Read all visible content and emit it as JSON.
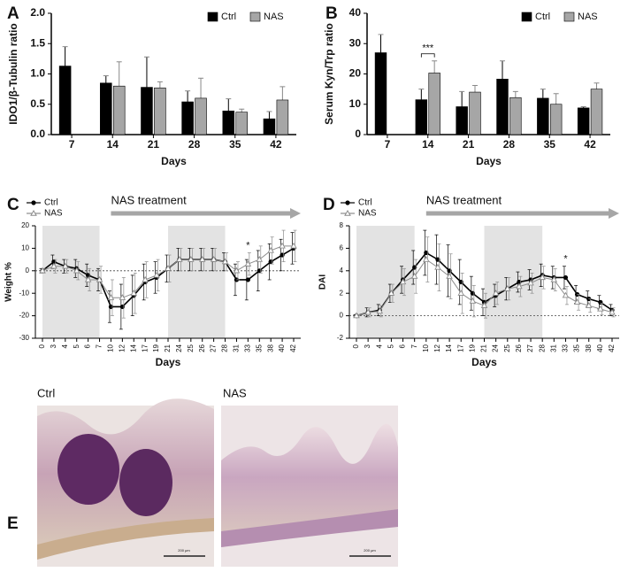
{
  "chart_data": [
    {
      "type": "bar",
      "panel_label": "A",
      "ylabel": "IDO1/β-Tubulin ratio",
      "xlabel": "Days",
      "categories": [
        "7",
        "14",
        "21",
        "28",
        "35",
        "42"
      ],
      "series": [
        {
          "name": "Ctrl",
          "color": "#000000",
          "values": [
            1.13,
            0.85,
            0.78,
            0.54,
            0.39,
            0.26
          ],
          "errors": [
            0.32,
            0.12,
            0.5,
            0.18,
            0.2,
            0.12
          ]
        },
        {
          "name": "NAS",
          "color": "#a6a6a6",
          "values": [
            null,
            0.8,
            0.77,
            0.6,
            0.37,
            0.57
          ],
          "errors": [
            null,
            0.4,
            0.1,
            0.33,
            0.05,
            0.22
          ]
        }
      ],
      "ylim": [
        0,
        2
      ],
      "yticks": [
        {
          "value": 0,
          "label": "0.0"
        },
        {
          "value": 0.5,
          "label": "0.5"
        },
        {
          "value": 1,
          "label": "1.0"
        },
        {
          "value": 1.5,
          "label": "1.5"
        },
        {
          "value": 2,
          "label": "2.0"
        }
      ],
      "legend": "top-right"
    },
    {
      "type": "bar",
      "panel_label": "B",
      "ylabel": "Serum Kyn/Trp ratio",
      "xlabel": "Days",
      "categories": [
        "7",
        "14",
        "21",
        "28",
        "35",
        "42"
      ],
      "series": [
        {
          "name": "Ctrl",
          "color": "#000000",
          "values": [
            27,
            11.5,
            9.2,
            18.3,
            12,
            8.8
          ],
          "errors": [
            6,
            3.5,
            5,
            6,
            3,
            0.4
          ]
        },
        {
          "name": "NAS",
          "color": "#a6a6a6",
          "values": [
            null,
            20.3,
            14,
            12.2,
            10,
            15
          ],
          "errors": [
            null,
            4,
            2.2,
            2,
            3.5,
            2
          ]
        }
      ],
      "ylim": [
        0,
        40
      ],
      "yticks": [
        0,
        10,
        20,
        30,
        40
      ],
      "annotations": [
        {
          "text": "***",
          "at": "14"
        }
      ],
      "legend": "top-right"
    },
    {
      "type": "line",
      "panel_label": "C",
      "ylabel": "Weight %",
      "xlabel": "Days",
      "categories": [
        "0",
        "3",
        "4",
        "5",
        "6",
        "7",
        "10",
        "12",
        "14",
        "17",
        "19",
        "21",
        "24",
        "25",
        "26",
        "27",
        "28",
        "31",
        "33",
        "35",
        "38",
        "40",
        "42"
      ],
      "series": [
        {
          "name": "Ctrl",
          "color": "#000000",
          "marker": "circle",
          "values": [
            0,
            4,
            2,
            1,
            -2,
            -4,
            -16,
            -16,
            -11,
            -5,
            -3,
            1,
            5,
            5,
            5,
            5,
            4,
            -4,
            -4,
            0,
            4,
            7,
            10
          ],
          "errors": [
            1,
            3,
            3,
            4,
            5,
            5,
            7,
            10,
            9,
            8,
            7,
            6,
            5,
            5,
            5,
            5,
            4,
            7,
            9,
            9,
            8,
            7,
            7
          ]
        },
        {
          "name": "NAS",
          "color": "#8c8c8c",
          "marker": "triangle",
          "values": [
            0,
            2,
            2,
            0,
            -4,
            -4,
            -12,
            -12,
            -10,
            -4,
            -2,
            1,
            5,
            5,
            5,
            5,
            4,
            0,
            3,
            5,
            9,
            11,
            11
          ],
          "errors": [
            1,
            3,
            3,
            4,
            5,
            6,
            8,
            9,
            9,
            8,
            7,
            6,
            5,
            5,
            5,
            5,
            4,
            4,
            5,
            6,
            6,
            7,
            7
          ]
        }
      ],
      "ylim": [
        -30,
        20
      ],
      "yticks": [
        -30,
        -20,
        -10,
        0,
        10,
        20
      ],
      "hline": 0,
      "shaded": [
        [
          "0",
          "7"
        ],
        [
          "21",
          "28"
        ]
      ],
      "arrow": {
        "text": "NAS treatment",
        "from": "10"
      },
      "annotations": [
        {
          "text": "*",
          "at": "33"
        }
      ],
      "legend": "top-left"
    },
    {
      "type": "line",
      "panel_label": "D",
      "ylabel": "DAI",
      "xlabel": "Days",
      "categories": [
        "0",
        "3",
        "4",
        "5",
        "6",
        "7",
        "10",
        "12",
        "14",
        "17",
        "19",
        "21",
        "24",
        "25",
        "26",
        "27",
        "28",
        "31",
        "33",
        "35",
        "38",
        "40",
        "42"
      ],
      "series": [
        {
          "name": "Ctrl",
          "color": "#000000",
          "marker": "circle",
          "values": [
            0,
            0.3,
            0.5,
            2,
            3.2,
            4.3,
            5.6,
            5,
            4,
            3,
            2,
            1.2,
            1.8,
            2.4,
            3,
            3.2,
            3.6,
            3.4,
            3.4,
            1.9,
            1.5,
            1.2,
            0.5
          ],
          "errors": [
            0.1,
            0.4,
            0.5,
            0.8,
            1.2,
            1.5,
            2,
            2.2,
            2.3,
            2,
            1.5,
            1.2,
            1,
            1,
            0.9,
            0.9,
            1,
            1,
            1,
            0.8,
            0.7,
            0.6,
            0.5
          ]
        },
        {
          "name": "NAS",
          "color": "#8c8c8c",
          "marker": "triangle",
          "values": [
            0,
            0.3,
            0.4,
            2,
            3,
            3.5,
            5,
            4.3,
            3.5,
            2,
            1.3,
            0.9,
            2,
            2.4,
            2.6,
            2.9,
            3.4,
            3.2,
            1.8,
            1.2,
            0.9,
            0.6,
            0.3
          ],
          "errors": [
            0.1,
            0.4,
            0.5,
            0.8,
            1.2,
            1.5,
            2,
            2.1,
            2,
            1.8,
            1.4,
            1.1,
            1,
            1,
            0.9,
            0.9,
            1,
            1,
            0.8,
            0.7,
            0.6,
            0.5,
            0.4
          ]
        }
      ],
      "ylim": [
        -2,
        8
      ],
      "yticks": [
        -2,
        0,
        2,
        4,
        6,
        8
      ],
      "hline": 0,
      "shaded": [
        [
          "0",
          "7"
        ],
        [
          "21",
          "28"
        ]
      ],
      "arrow": {
        "text": "NAS treatment",
        "from": "10"
      },
      "annotations": [
        {
          "text": "*",
          "at": "33"
        }
      ],
      "legend": "top-left"
    }
  ],
  "panel_e": {
    "panel_label": "E",
    "images": [
      {
        "title": "Ctrl",
        "scale_bar": "200 μm"
      },
      {
        "title": "NAS",
        "scale_bar": "200 μm"
      }
    ]
  }
}
